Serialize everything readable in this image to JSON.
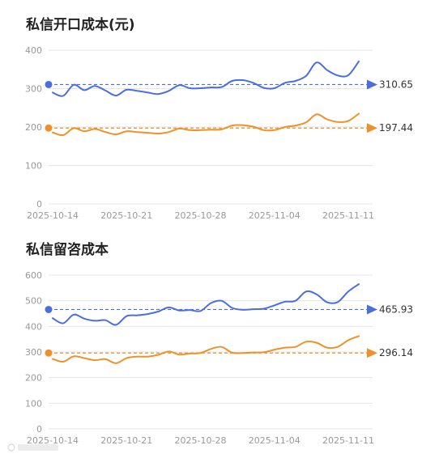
{
  "chart_data": [
    {
      "type": "line",
      "title": "私信开口成本(元)",
      "x_ticks": [
        "2025-10-14",
        "2025-10-21",
        "2025-10-28",
        "2025-11-04",
        "2025-11-11"
      ],
      "x_start": "2025-10-14",
      "ylim": [
        0,
        400
      ],
      "y_ticks": [
        0,
        100,
        200,
        300,
        400
      ],
      "grid": true,
      "series": [
        {
          "color": "#4a6ee0",
          "reference": 310.65,
          "reference_label": "310.65",
          "x": [
            "2025-10-14",
            "2025-10-15",
            "2025-10-16",
            "2025-10-17",
            "2025-10-18",
            "2025-10-19",
            "2025-10-20",
            "2025-10-21",
            "2025-10-22",
            "2025-10-23",
            "2025-10-24",
            "2025-10-25",
            "2025-10-26",
            "2025-10-27",
            "2025-10-28",
            "2025-10-29",
            "2025-10-30",
            "2025-10-31",
            "2025-11-01",
            "2025-11-02",
            "2025-11-03",
            "2025-11-04",
            "2025-11-05",
            "2025-11-06",
            "2025-11-07",
            "2025-11-08",
            "2025-11-09",
            "2025-11-10",
            "2025-11-11",
            "2025-11-12"
          ],
          "values": [
            290,
            281,
            310,
            296,
            307,
            295,
            282,
            297,
            294,
            290,
            286,
            294,
            309,
            301,
            301,
            303,
            304,
            320,
            322,
            315,
            302,
            301,
            315,
            320,
            333,
            368,
            348,
            334,
            335,
            371
          ]
        },
        {
          "color": "#f0902a",
          "reference": 197.44,
          "reference_label": "197.44",
          "x": [
            "2025-10-14",
            "2025-10-15",
            "2025-10-16",
            "2025-10-17",
            "2025-10-18",
            "2025-10-19",
            "2025-10-20",
            "2025-10-21",
            "2025-10-22",
            "2025-10-23",
            "2025-10-24",
            "2025-10-25",
            "2025-10-26",
            "2025-10-27",
            "2025-10-28",
            "2025-10-29",
            "2025-10-30",
            "2025-10-31",
            "2025-11-01",
            "2025-11-02",
            "2025-11-03",
            "2025-11-04",
            "2025-11-05",
            "2025-11-06",
            "2025-11-07",
            "2025-11-08",
            "2025-11-09",
            "2025-11-10",
            "2025-11-11",
            "2025-11-12"
          ],
          "values": [
            186,
            179,
            197,
            189,
            195,
            187,
            181,
            189,
            187,
            185,
            183,
            187,
            196,
            192,
            192,
            193,
            194,
            204,
            205,
            201,
            192,
            192,
            200,
            204,
            212,
            233,
            220,
            213,
            216,
            235
          ]
        }
      ]
    },
    {
      "type": "line",
      "title": "私信留咨成本",
      "x_ticks": [
        "2025-10-14",
        "2025-10-21",
        "2025-10-28",
        "2025-11-04",
        "2025-11-11"
      ],
      "x_start": "2025-10-14",
      "ylim": [
        0,
        600
      ],
      "y_ticks": [
        0,
        100,
        200,
        300,
        400,
        500,
        600
      ],
      "grid": true,
      "series": [
        {
          "color": "#4a6ee0",
          "reference": 465.93,
          "reference_label": "465.93",
          "x": [
            "2025-10-14",
            "2025-10-15",
            "2025-10-16",
            "2025-10-17",
            "2025-10-18",
            "2025-10-19",
            "2025-10-20",
            "2025-10-21",
            "2025-10-22",
            "2025-10-23",
            "2025-10-24",
            "2025-10-25",
            "2025-10-26",
            "2025-10-27",
            "2025-10-28",
            "2025-10-29",
            "2025-10-30",
            "2025-10-31",
            "2025-11-01",
            "2025-11-02",
            "2025-11-03",
            "2025-11-04",
            "2025-11-05",
            "2025-11-06",
            "2025-11-07",
            "2025-11-08",
            "2025-11-09",
            "2025-11-10",
            "2025-11-11",
            "2025-11-12"
          ],
          "values": [
            432,
            412,
            446,
            430,
            422,
            424,
            406,
            440,
            443,
            448,
            458,
            474,
            462,
            464,
            460,
            491,
            500,
            472,
            465,
            467,
            469,
            482,
            496,
            500,
            536,
            525,
            494,
            495,
            536,
            565
          ]
        },
        {
          "color": "#f0902a",
          "reference": 296.14,
          "reference_label": "296.14",
          "x": [
            "2025-10-14",
            "2025-10-15",
            "2025-10-16",
            "2025-10-17",
            "2025-10-18",
            "2025-10-19",
            "2025-10-20",
            "2025-10-21",
            "2025-10-22",
            "2025-10-23",
            "2025-10-24",
            "2025-10-25",
            "2025-10-26",
            "2025-10-27",
            "2025-10-28",
            "2025-10-29",
            "2025-10-30",
            "2025-10-31",
            "2025-11-01",
            "2025-11-02",
            "2025-11-03",
            "2025-11-04",
            "2025-11-05",
            "2025-11-06",
            "2025-11-07",
            "2025-11-08",
            "2025-11-09",
            "2025-11-10",
            "2025-11-11",
            "2025-11-12"
          ],
          "values": [
            273,
            262,
            283,
            276,
            268,
            272,
            256,
            276,
            282,
            282,
            289,
            302,
            290,
            294,
            296,
            312,
            320,
            297,
            296,
            298,
            299,
            309,
            317,
            320,
            340,
            336,
            317,
            320,
            346,
            362
          ]
        }
      ]
    }
  ]
}
